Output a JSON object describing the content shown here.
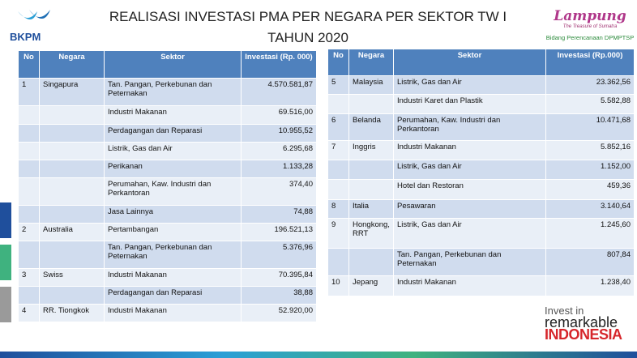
{
  "header": {
    "title_line1": "REALISASI INVESTASI PMA PER NEGARA PER SEKTOR  TW I",
    "title_line2": "TAHUN 2020",
    "logo_left": "BKPM",
    "logo_right": "Lampung",
    "logo_right_tagline": "The Treasure of Sumatra",
    "logo_right_caption": "Bidang Perencanaan DPMPTSP"
  },
  "footer": {
    "line1": "Invest in",
    "line2": "remarkable",
    "line3": "INDONESIA"
  },
  "table_left": {
    "columns": [
      "No",
      "Negara",
      "Sektor",
      "Investasi (Rp. 000)"
    ],
    "rows": [
      [
        "1",
        "Singapura",
        "Tan. Pangan, Perkebunan dan Peternakan",
        "4.570.581,87"
      ],
      [
        null,
        null,
        "Industri Makanan",
        "69.516,00"
      ],
      [
        null,
        null,
        "Perdagangan dan Reparasi",
        "10.955,52"
      ],
      [
        null,
        null,
        "Listrik, Gas dan Air",
        "6.295,68"
      ],
      [
        null,
        null,
        "Perikanan",
        "1.133,28"
      ],
      [
        null,
        null,
        "Perumahan, Kaw. Industri dan Perkantoran",
        "374,40"
      ],
      [
        null,
        null,
        "Jasa Lainnya",
        "74,88"
      ],
      [
        "2",
        "Australia",
        "Pertambangan",
        "196.521,13"
      ],
      [
        null,
        null,
        "Tan. Pangan, Perkebunan dan Peternakan",
        "5.376,96"
      ],
      [
        "3",
        "Swiss",
        "Industri Makanan",
        "70.395,84"
      ],
      [
        null,
        null,
        "Perdagangan dan Reparasi",
        "38,88"
      ],
      [
        "4",
        "RR. Tiongkok",
        "Industri Makanan",
        "52.920,00"
      ]
    ]
  },
  "table_right": {
    "columns": [
      "No",
      "Negara",
      "Sektor",
      "Investasi (Rp.000)"
    ],
    "rows": [
      [
        "5",
        "Malaysia",
        "Listrik, Gas dan Air",
        "23.362,56"
      ],
      [
        null,
        null,
        "Industri Karet dan Plastik",
        "5.582,88"
      ],
      [
        "6",
        "Belanda",
        "Perumahan, Kaw. Industri dan Perkantoran",
        "10.471,68"
      ],
      [
        "7",
        "Inggris",
        "Industri Makanan",
        "5.852,16"
      ],
      [
        null,
        null,
        "Listrik, Gas dan Air",
        "1.152,00"
      ],
      [
        null,
        null,
        "Hotel dan Restoran",
        "459,36"
      ],
      [
        "8",
        "Italia",
        "Pesawaran",
        "3.140,64"
      ],
      [
        "9",
        "Hongkong, RRT",
        "Listrik, Gas dan Air",
        "1.245,60"
      ],
      [
        null,
        null,
        "Tan. Pangan, Perkebunan dan Peternakan",
        "807,84"
      ],
      [
        "10",
        "Jepang",
        "Industri Makanan",
        "1.238,40"
      ]
    ]
  }
}
